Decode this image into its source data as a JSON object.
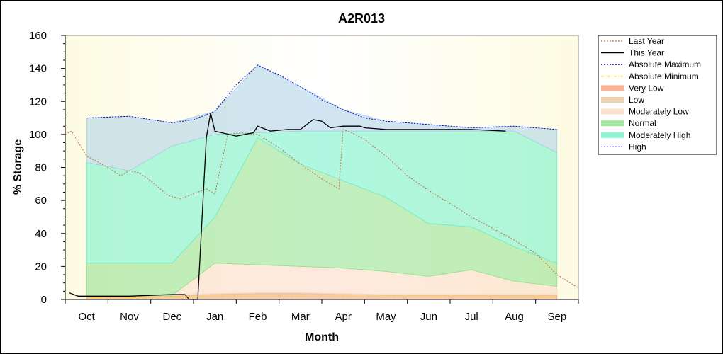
{
  "chart_data": {
    "type": "area",
    "title": "A2R013",
    "xlabel": "Month",
    "ylabel": "% Storage",
    "ylim": [
      0,
      160
    ],
    "yticks": [
      0,
      20,
      40,
      60,
      80,
      100,
      120,
      140,
      160
    ],
    "xlim": [
      -0.5,
      11.5
    ],
    "categories": [
      "Oct",
      "Nov",
      "Dec",
      "Jan",
      "Feb",
      "Mar",
      "Apr",
      "May",
      "Jun",
      "Jul",
      "Aug",
      "Sep"
    ],
    "grid": false,
    "legend_position": "right",
    "bands": [
      {
        "name": "Very Low",
        "color": "#f4a07a",
        "x": [
          0,
          1,
          2,
          3,
          4,
          5,
          6,
          7,
          8,
          9,
          10,
          11
        ],
        "lower": [
          0,
          0,
          0,
          0,
          0,
          0,
          0,
          0,
          0,
          0,
          0,
          0
        ],
        "upper": [
          1.5,
          1.5,
          2,
          3,
          3.5,
          3.5,
          3,
          2.5,
          2.5,
          2.5,
          2.5,
          2.5
        ]
      },
      {
        "name": "Low",
        "color": "#e9c79f",
        "x": [
          0,
          1,
          2,
          3,
          4,
          5,
          6,
          7,
          8,
          9,
          10,
          11
        ],
        "lower": [
          1.5,
          1.5,
          2,
          3,
          3.5,
          3.5,
          3,
          2.5,
          2.5,
          2.5,
          2.5,
          2.5
        ],
        "upper": [
          2,
          2,
          2.5,
          3.5,
          4,
          4,
          3.5,
          3,
          3,
          3,
          3,
          3
        ]
      },
      {
        "name": "Moderately Low",
        "color": "#fbd9c3",
        "x": [
          0,
          1,
          2,
          3,
          4,
          5,
          6,
          7,
          8,
          9,
          10,
          11
        ],
        "lower": [
          2,
          2,
          2.5,
          3.5,
          4,
          4,
          3.5,
          3,
          3,
          3,
          3,
          3
        ],
        "upper": [
          2,
          2,
          2.5,
          22,
          21,
          20,
          19,
          17,
          14,
          18,
          11,
          8
        ]
      },
      {
        "name": "Normal",
        "color": "#8ee08a",
        "x": [
          0,
          1,
          2,
          3,
          4,
          5,
          6,
          7,
          8,
          9,
          10,
          11
        ],
        "lower": [
          2,
          2,
          2.5,
          22,
          21,
          20,
          19,
          17,
          14,
          18,
          11,
          8
        ],
        "upper": [
          22,
          22,
          22,
          50,
          98,
          82,
          72,
          62,
          46,
          44,
          32,
          22
        ]
      },
      {
        "name": "Moderately High",
        "color": "#6ff0c8",
        "x": [
          0,
          1,
          2,
          3,
          4,
          5,
          6,
          7,
          8,
          9,
          10,
          11
        ],
        "lower": [
          22,
          22,
          22,
          50,
          98,
          82,
          72,
          62,
          46,
          44,
          32,
          22
        ],
        "upper": [
          83,
          78,
          93,
          100,
          101,
          102,
          102,
          102,
          102,
          102,
          102,
          89
        ]
      },
      {
        "name": "High",
        "color": "#a9cfe6",
        "x": [
          0,
          1,
          2,
          3,
          4,
          5,
          6,
          7,
          8,
          9,
          10,
          11
        ],
        "lower": [
          83,
          78,
          93,
          100,
          101,
          102,
          102,
          102,
          102,
          102,
          102,
          89
        ],
        "upper": [
          110,
          111,
          107,
          114,
          142,
          129,
          115,
          108,
          106,
          104,
          105,
          103
        ]
      }
    ],
    "series": [
      {
        "name": "Last Year",
        "color": "#c07040",
        "dash": "2,2",
        "x": [
          -0.5,
          -0.35,
          0,
          0.5,
          0.8,
          1,
          1.2,
          1.5,
          1.9,
          2.2,
          2.5,
          2.8,
          3,
          3.3,
          3.6,
          4,
          4.5,
          5,
          5.5,
          5.9,
          6,
          6.2,
          6.5,
          7,
          7.5,
          8,
          8.5,
          9,
          9.5,
          10,
          10.5,
          11,
          11.5
        ],
        "y": [
          100,
          102,
          87,
          80,
          75,
          78,
          77,
          72,
          63,
          61,
          64,
          67,
          64,
          100,
          101,
          100,
          92,
          82,
          73,
          67,
          103,
          101,
          97,
          87,
          75,
          66,
          58,
          50,
          43,
          36,
          28,
          15,
          7
        ]
      },
      {
        "name": "This Year",
        "color": "#000000",
        "dash": "",
        "x": [
          -0.4,
          -0.2,
          0,
          1,
          2,
          2.3,
          2.4,
          2.6,
          2.8,
          2.9,
          3,
          3.5,
          3.9,
          4,
          4.3,
          4.7,
          5,
          5.3,
          5.5,
          5.7,
          6,
          6.4,
          6.5,
          7,
          8,
          9,
          9.8
        ],
        "y": [
          4,
          2,
          2,
          2,
          3,
          3,
          0,
          0,
          98,
          113,
          102,
          99,
          101,
          105,
          102,
          103,
          103,
          109,
          108,
          104,
          105,
          105,
          104,
          103,
          103,
          103,
          102
        ]
      },
      {
        "name": "Absolute Maximum",
        "color": "#0000c8",
        "dash": "2,2",
        "x": [
          0,
          1,
          2,
          2.5,
          3,
          3.5,
          4,
          4.5,
          5,
          5.5,
          6,
          6.5,
          7,
          8,
          9,
          10,
          11
        ],
        "y": [
          110,
          111,
          107,
          109,
          114,
          130,
          142,
          136,
          129,
          121,
          115,
          110,
          108,
          106,
          104,
          105,
          103
        ]
      },
      {
        "name": "Absolute Minimum",
        "color": "#f0e000",
        "dash": "4,2,1,2",
        "x": [
          0,
          1,
          2,
          3,
          4,
          5,
          6,
          7,
          8,
          9,
          10,
          11
        ],
        "y": [
          1,
          1,
          1.5,
          2,
          2,
          2,
          2,
          1.5,
          1.5,
          1.5,
          1.5,
          1.5
        ]
      }
    ]
  }
}
